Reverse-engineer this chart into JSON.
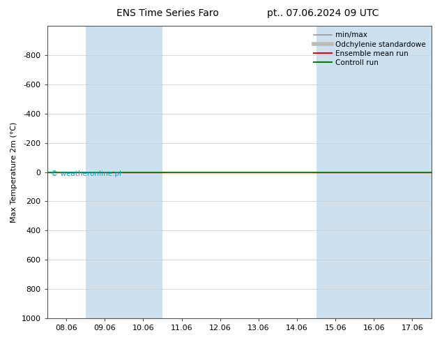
{
  "title": "ENS Time Series Faro",
  "title_right": "pt.. 07.06.2024 09 UTC",
  "ylabel": "Max Temperature 2m (°C)",
  "ylim_bottom": 1000,
  "ylim_top": -1000,
  "yticks": [
    -800,
    -600,
    -400,
    -200,
    0,
    200,
    400,
    600,
    800,
    1000
  ],
  "xtick_labels": [
    "08.06",
    "09.06",
    "10.06",
    "11.06",
    "12.06",
    "13.06",
    "14.06",
    "15.06",
    "16.06",
    "17.06"
  ],
  "xtick_positions": [
    0,
    1,
    2,
    3,
    4,
    5,
    6,
    7,
    8,
    9
  ],
  "shade_columns": [
    1,
    2,
    7,
    8,
    9
  ],
  "shade_color": "#cce0f0",
  "bg_color": "#ffffff",
  "plot_bg_color": "#ffffff",
  "control_run_y": 0,
  "control_run_color": "#008000",
  "ensemble_mean_color": "#ff0000",
  "minmax_color": "#999999",
  "std_color": "#bbcfe0",
  "watermark": "© weatheronline.pl",
  "watermark_color": "#00aacc",
  "legend_items": [
    "min/max",
    "Odchylenie standardowe",
    "Ensemble mean run",
    "Controll run"
  ],
  "legend_colors_line": [
    "#999999",
    "#bbbbbb",
    "#ff0000",
    "#008000"
  ],
  "title_fontsize": 10,
  "axis_fontsize": 8,
  "tick_fontsize": 8,
  "legend_fontsize": 7.5
}
